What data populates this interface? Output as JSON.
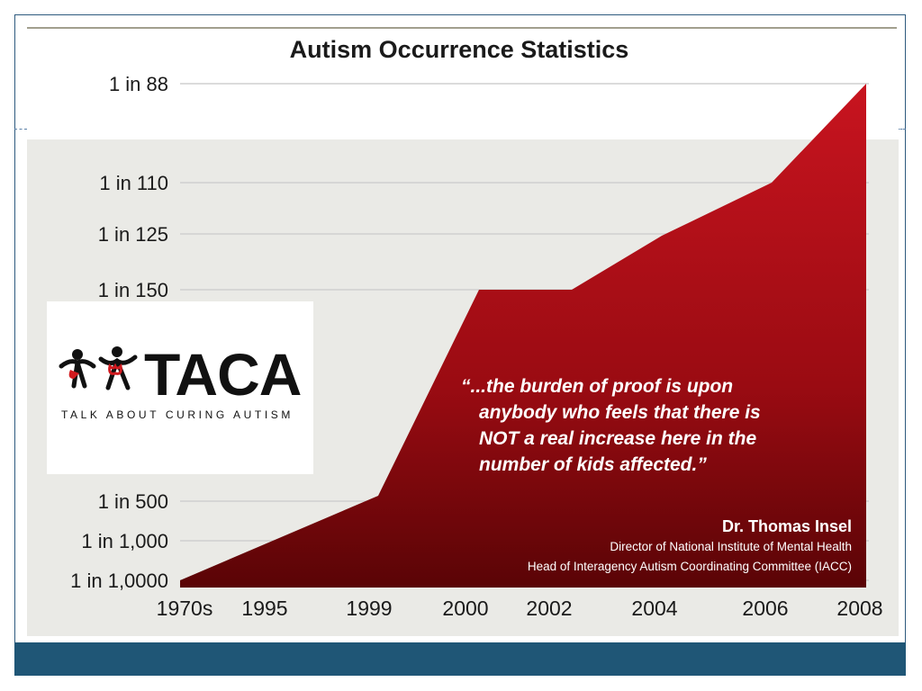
{
  "chart_data": {
    "type": "area",
    "title": "Autism Occurrence Statistics",
    "xlabel": "",
    "ylabel": "",
    "x_ticks": [
      "1970s",
      "1995",
      "1999",
      "2000",
      "2002",
      "2004",
      "2006",
      "2008"
    ],
    "y_ticks": [
      "1 in 88",
      "1 in 110",
      "1 in 125",
      "1 in 150",
      "1 in 500",
      "1 in 1,000",
      "1 in 1,0000"
    ],
    "series": [
      {
        "points": [
          {
            "x": "1970s",
            "y": "1 in 1,0000"
          },
          {
            "x": "1999",
            "y": "1 in 500"
          },
          {
            "x": "2000",
            "y": "1 in 150"
          },
          {
            "x": "2002",
            "y": "1 in 150"
          },
          {
            "x": "2004",
            "y": "1 in 125"
          },
          {
            "x": "2006",
            "y": "1 in 110"
          },
          {
            "x": "2008",
            "y": "1 in 88"
          }
        ]
      }
    ],
    "fill_color": "#a3101a",
    "grid": true,
    "annotation": {
      "quote_lines": [
        "“...the burden of proof is upon",
        "anybody who feels that there is",
        "NOT a real increase here in the",
        "number of kids affected.”"
      ],
      "author": "Dr. Thomas Insel",
      "roles": [
        "Director of National Institute of Mental Health",
        "Head of Interagency Autism Coordinating Committee (IACC)"
      ]
    }
  },
  "logo": {
    "name": "TACA",
    "tagline": "TALK ABOUT CURING AUTISM",
    "icon": "taca-figures-icon"
  },
  "theme": {
    "footer_color": "#1f5676",
    "frame_color": "#2e5a7e"
  }
}
